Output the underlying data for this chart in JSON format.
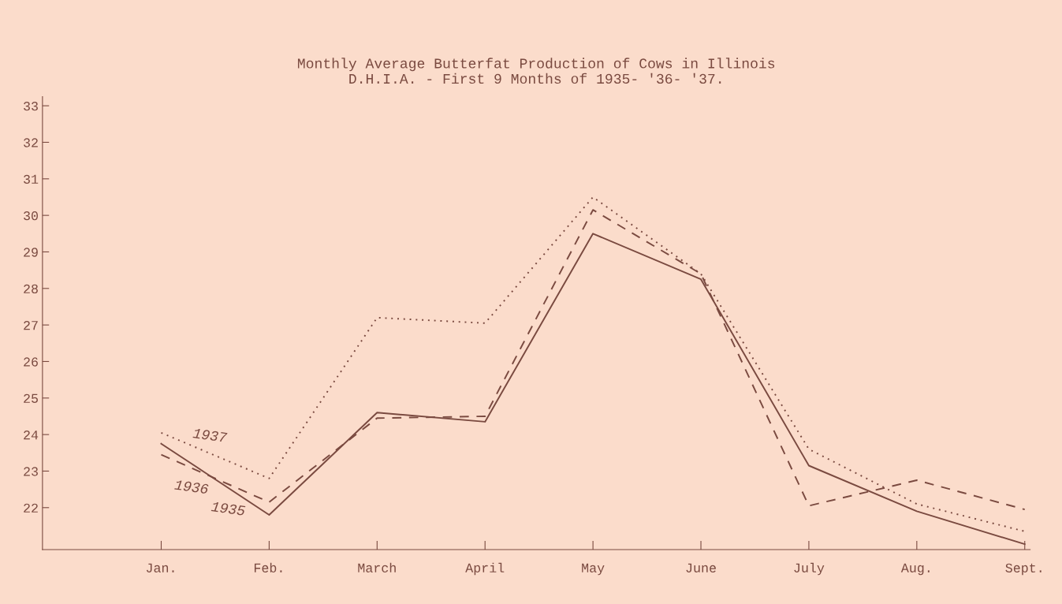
{
  "chart_data": {
    "type": "line",
    "title": "Monthly Average Butterfat Production of Cows in Illinois\nD.H.I.A. - First 9 Months of 1935- '36- '37.",
    "categories": [
      "Jan.",
      "Feb.",
      "March",
      "April",
      "May",
      "June",
      "July",
      "Aug.",
      "Sept."
    ],
    "series": [
      {
        "name": "1937",
        "color": "#7a4a40",
        "line_style": "dotted",
        "values": [
          24.05,
          22.8,
          27.2,
          27.05,
          30.5,
          28.4,
          23.6,
          22.1,
          21.35
        ]
      },
      {
        "name": "1936",
        "color": "#7a4a40",
        "line_style": "dashed",
        "values": [
          23.45,
          22.15,
          24.45,
          24.5,
          30.15,
          28.4,
          22.05,
          22.75,
          21.95
        ]
      },
      {
        "name": "1935",
        "color": "#7a4a40",
        "line_style": "solid",
        "values": [
          23.75,
          21.8,
          24.6,
          24.35,
          29.5,
          28.25,
          23.15,
          21.9,
          21.0
        ]
      }
    ],
    "ylim": [
      20.85,
      33.25
    ],
    "yticks": [
      22,
      23,
      24,
      25,
      26,
      27,
      28,
      29,
      30,
      31,
      32,
      33
    ],
    "grid": false,
    "legend": false,
    "marker": "none"
  }
}
